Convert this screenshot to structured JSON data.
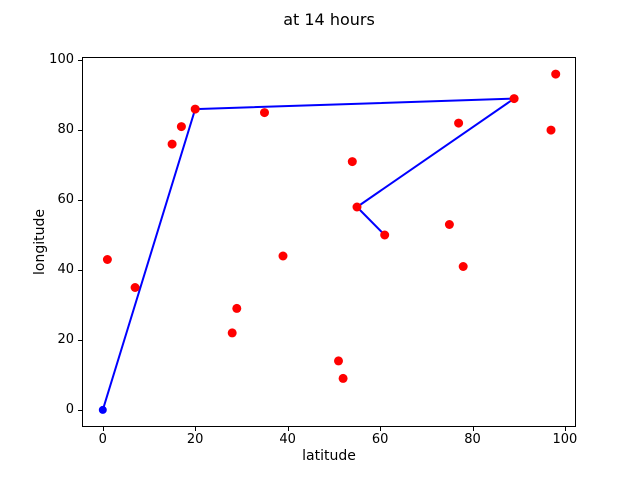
{
  "chart_data": {
    "type": "scatter",
    "title": "at 14 hours",
    "xlabel": "latitude",
    "ylabel": "longitude",
    "xlim": [
      -4.5,
      102.4
    ],
    "ylim": [
      -4.9,
      100.9
    ],
    "xticks": [
      0,
      20,
      40,
      60,
      80,
      100
    ],
    "yticks": [
      0,
      20,
      40,
      60,
      80,
      100
    ],
    "grid": false,
    "legend": "none",
    "colors": {
      "points": "#ff0000",
      "route": "#0000ff",
      "frame": "#000000",
      "text": "#000000",
      "background": "#ffffff"
    },
    "series": [
      {
        "name": "route",
        "type": "line",
        "color": "#0000ff",
        "line_width": 2,
        "marker_radius": 4,
        "points": [
          [
            0,
            0
          ],
          [
            20,
            86
          ],
          [
            89,
            89
          ],
          [
            55,
            58
          ],
          [
            61,
            50
          ]
        ]
      },
      {
        "name": "points",
        "type": "scatter",
        "color": "#ff0000",
        "marker_radius": 4.5,
        "points": [
          [
            1,
            43
          ],
          [
            7,
            35
          ],
          [
            15,
            76
          ],
          [
            17,
            81
          ],
          [
            20,
            86
          ],
          [
            28,
            22
          ],
          [
            29,
            29
          ],
          [
            35,
            85
          ],
          [
            39,
            44
          ],
          [
            51,
            14
          ],
          [
            52,
            9
          ],
          [
            54,
            71
          ],
          [
            55,
            58
          ],
          [
            61,
            50
          ],
          [
            75,
            53
          ],
          [
            77,
            82
          ],
          [
            78,
            41
          ],
          [
            89,
            89
          ],
          [
            97,
            80
          ],
          [
            98,
            96
          ]
        ]
      }
    ]
  }
}
